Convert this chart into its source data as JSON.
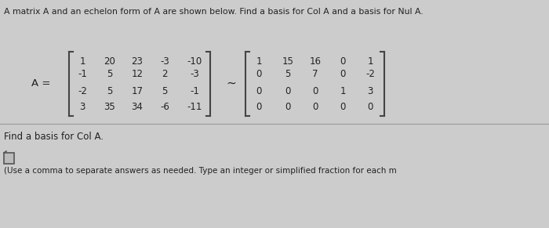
{
  "title": "A matrix A and an echelon form of A are shown below. Find a basis for Col A and a basis for Nul A.",
  "A_label": "A =",
  "matrix_A": [
    [
      "1",
      "20",
      "23",
      "-3",
      "-10"
    ],
    [
      "-1",
      "5",
      "12",
      "2",
      "-3"
    ],
    [
      "-2",
      "5",
      "17",
      "5",
      "-1"
    ],
    [
      "3",
      "35",
      "34",
      "-6",
      "-11"
    ]
  ],
  "matrix_E": [
    [
      "1",
      "15",
      "16",
      "0",
      "1"
    ],
    [
      "0",
      "5",
      "7",
      "0",
      "-2"
    ],
    [
      "0",
      "0",
      "0",
      "1",
      "3"
    ],
    [
      "0",
      "0",
      "0",
      "0",
      "0"
    ]
  ],
  "tilde": "~",
  "find_col": "Find a basis for Col A.",
  "instruction": "(Use a comma to separate answers as needed. Type an integer or simplified fraction for each m",
  "bg_color": "#cccccc",
  "text_color": "#222222",
  "line_color": "#999999",
  "bracket_color": "#444444"
}
